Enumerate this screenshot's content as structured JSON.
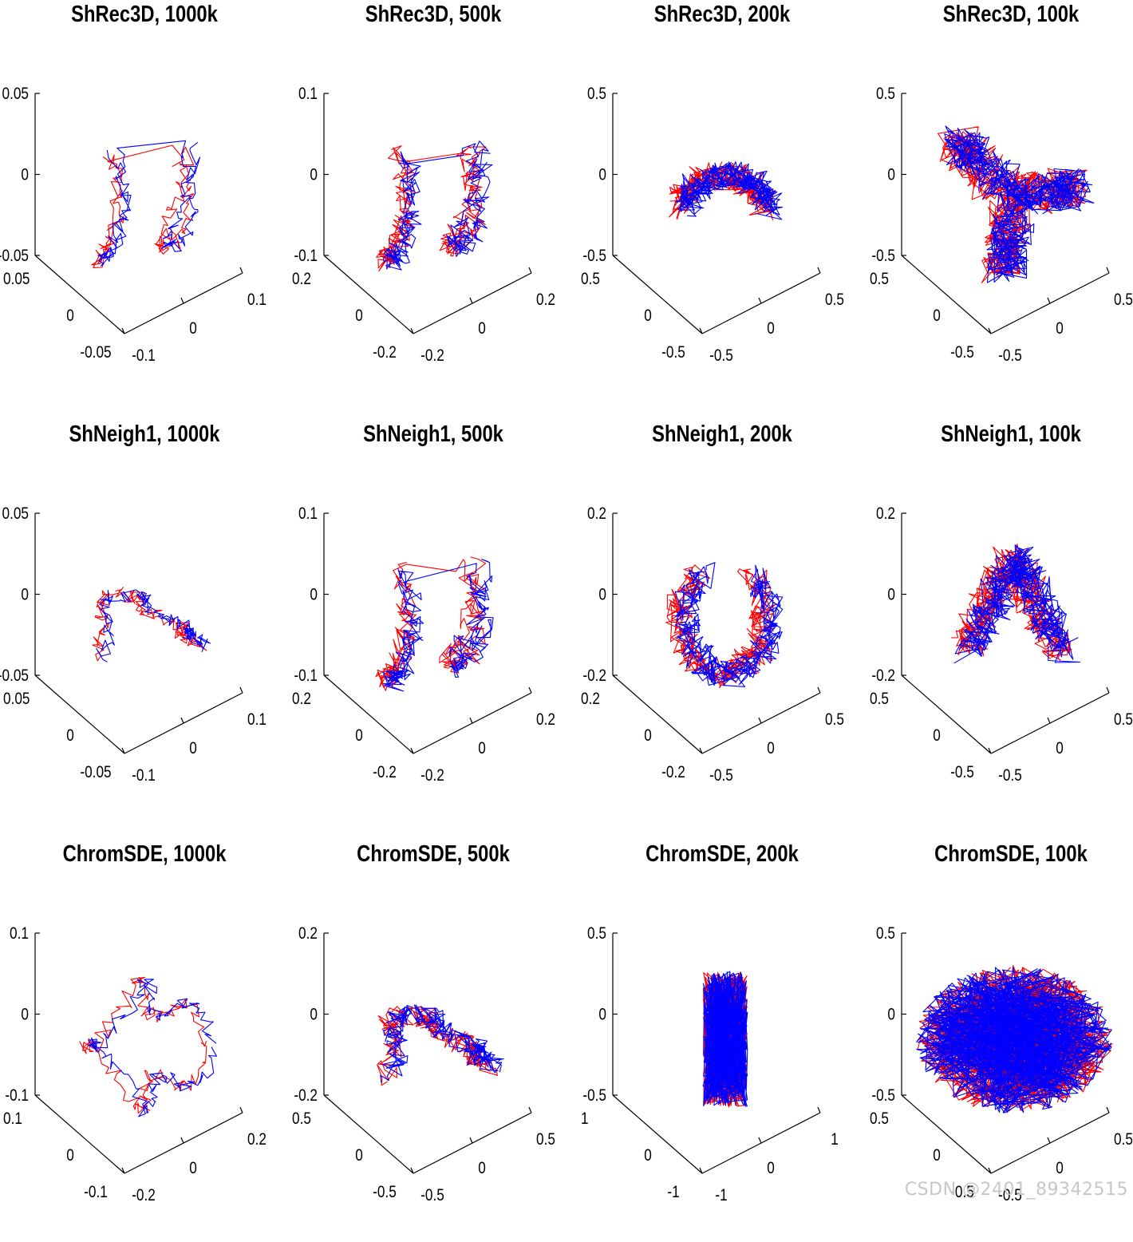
{
  "colors": {
    "series_a": "#ff0000",
    "series_b": "#0000ff",
    "axis": "#000000",
    "watermark": "#c7c7c7"
  },
  "watermark": "CSDN @2401_89342515",
  "chart_data": [
    {
      "type": "line3d",
      "title": "ShRec3D, 1000k",
      "zticks": [
        "0.05",
        "0",
        "-0.05"
      ],
      "yticks": [
        "0.05",
        "0",
        "-0.05"
      ],
      "xticks": [
        "-0.1",
        "0",
        "0.1"
      ],
      "shape": "u",
      "density": 1,
      "seed": 11,
      "series": [
        {
          "name": "red",
          "color": "#ff0000"
        },
        {
          "name": "blue",
          "color": "#0000ff"
        }
      ]
    },
    {
      "type": "line3d",
      "title": "ShRec3D, 500k",
      "zticks": [
        "0.1",
        "0",
        "-0.1"
      ],
      "yticks": [
        "0.2",
        "0",
        "-0.2"
      ],
      "xticks": [
        "-0.2",
        "0",
        "0.2"
      ],
      "shape": "u",
      "density": 2,
      "seed": 12,
      "series": [
        {
          "name": "red",
          "color": "#ff0000"
        },
        {
          "name": "blue",
          "color": "#0000ff"
        }
      ]
    },
    {
      "type": "line3d",
      "title": "ShRec3D, 200k",
      "zticks": [
        "0.5",
        "0",
        "-0.5"
      ],
      "yticks": [
        "0.5",
        "0",
        "-0.5"
      ],
      "xticks": [
        "-0.5",
        "0",
        "0.5"
      ],
      "shape": "arc",
      "density": 3,
      "seed": 13,
      "series": [
        {
          "name": "red",
          "color": "#ff0000"
        },
        {
          "name": "blue",
          "color": "#0000ff"
        }
      ]
    },
    {
      "type": "line3d",
      "title": "ShRec3D, 100k",
      "zticks": [
        "0.5",
        "0",
        "-0.5"
      ],
      "yticks": [
        "0.5",
        "0",
        "-0.5"
      ],
      "xticks": [
        "-0.5",
        "0",
        "0.5"
      ],
      "shape": "tri",
      "density": 5,
      "seed": 14,
      "series": [
        {
          "name": "red",
          "color": "#ff0000"
        },
        {
          "name": "blue",
          "color": "#0000ff"
        }
      ]
    },
    {
      "type": "line3d",
      "title": "ShNeigh1, 1000k",
      "zticks": [
        "0.05",
        "0",
        "-0.05"
      ],
      "yticks": [
        "0.05",
        "0",
        "-0.05"
      ],
      "xticks": [
        "-0.1",
        "0",
        "0.1"
      ],
      "shape": "n",
      "density": 1,
      "seed": 21,
      "series": [
        {
          "name": "red",
          "color": "#ff0000"
        },
        {
          "name": "blue",
          "color": "#0000ff"
        }
      ]
    },
    {
      "type": "line3d",
      "title": "ShNeigh1, 500k",
      "zticks": [
        "0.1",
        "0",
        "-0.1"
      ],
      "yticks": [
        "0.2",
        "0",
        "-0.2"
      ],
      "xticks": [
        "-0.2",
        "0",
        "0.2"
      ],
      "shape": "u",
      "density": 2,
      "seed": 22,
      "series": [
        {
          "name": "red",
          "color": "#ff0000"
        },
        {
          "name": "blue",
          "color": "#0000ff"
        }
      ]
    },
    {
      "type": "line3d",
      "title": "ShNeigh1, 200k",
      "zticks": [
        "0.2",
        "0",
        "-0.2"
      ],
      "yticks": [
        "0.2",
        "0",
        "-0.2"
      ],
      "xticks": [
        "-0.5",
        "0",
        "0.5"
      ],
      "shape": "hook",
      "density": 3,
      "seed": 23,
      "series": [
        {
          "name": "red",
          "color": "#ff0000"
        },
        {
          "name": "blue",
          "color": "#0000ff"
        }
      ]
    },
    {
      "type": "line3d",
      "title": "ShNeigh1, 100k",
      "zticks": [
        "0.2",
        "0",
        "-0.2"
      ],
      "yticks": [
        "0.5",
        "0",
        "-0.5"
      ],
      "xticks": [
        "-0.5",
        "0",
        "0.5"
      ],
      "shape": "lambda",
      "density": 4,
      "seed": 24,
      "series": [
        {
          "name": "red",
          "color": "#ff0000"
        },
        {
          "name": "blue",
          "color": "#0000ff"
        }
      ]
    },
    {
      "type": "line3d",
      "title": "ChromSDE, 1000k",
      "zticks": [
        "0.1",
        "0",
        "-0.1"
      ],
      "yticks": [
        "0.1",
        "0",
        "-0.1"
      ],
      "xticks": [
        "-0.2",
        "0",
        "0.2"
      ],
      "shape": "blob",
      "density": 1,
      "seed": 31,
      "series": [
        {
          "name": "red",
          "color": "#ff0000"
        },
        {
          "name": "blue",
          "color": "#0000ff"
        }
      ]
    },
    {
      "type": "line3d",
      "title": "ChromSDE, 500k",
      "zticks": [
        "0.2",
        "0",
        "-0.2"
      ],
      "yticks": [
        "0.5",
        "0",
        "-0.5"
      ],
      "xticks": [
        "-0.5",
        "0",
        "0.5"
      ],
      "shape": "n",
      "density": 2,
      "seed": 32,
      "series": [
        {
          "name": "red",
          "color": "#ff0000"
        },
        {
          "name": "blue",
          "color": "#0000ff"
        }
      ]
    },
    {
      "type": "line3d",
      "title": "ChromSDE, 200k",
      "zticks": [
        "0.5",
        "0",
        "-0.5"
      ],
      "yticks": [
        "1",
        "0",
        "-1"
      ],
      "xticks": [
        "-1",
        "0",
        "1"
      ],
      "shape": "rect",
      "density": 5,
      "seed": 33,
      "series": [
        {
          "name": "red",
          "color": "#ff0000"
        },
        {
          "name": "blue",
          "color": "#0000ff"
        }
      ]
    },
    {
      "type": "line3d",
      "title": "ChromSDE, 100k",
      "zticks": [
        "0.5",
        "0",
        "-0.5"
      ],
      "yticks": [
        "0.5",
        "0",
        "-0.5"
      ],
      "xticks": [
        "-0.5",
        "0",
        "0.5"
      ],
      "shape": "ball",
      "density": 7,
      "seed": 34,
      "series": [
        {
          "name": "red",
          "color": "#ff0000"
        },
        {
          "name": "blue",
          "color": "#0000ff"
        }
      ]
    }
  ]
}
